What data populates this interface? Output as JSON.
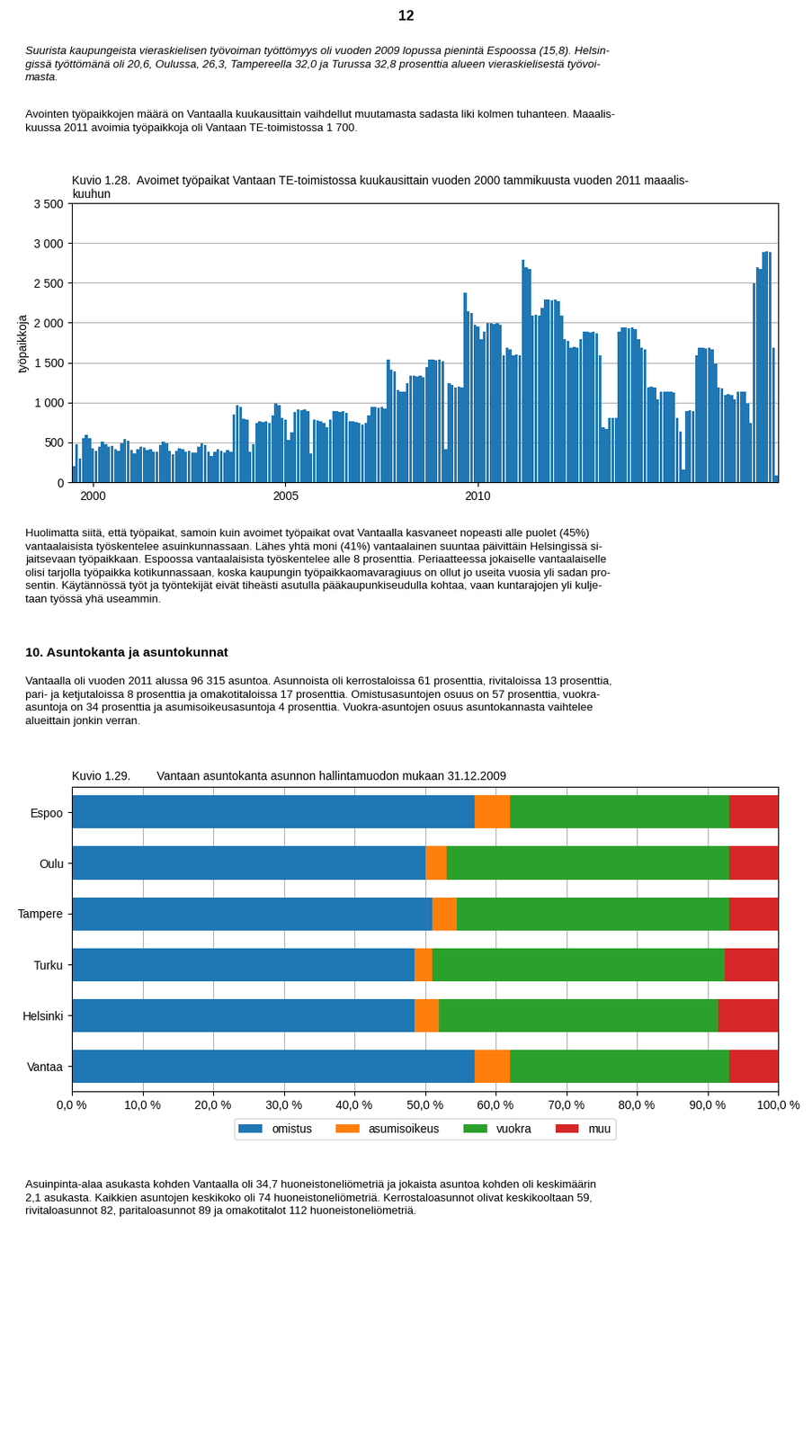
{
  "texts": [
    "12",
    "Suurista kaupungeista vieraskielisen työvoiman työttömyys oli vuoden 2009 lopussa pienintä Espoossa (15,8). Helsin-\ngissä työttömänä oli 20,6, Oulussa, 26,3, Tampereella 32,0 ja Turussa 32,8 prosenttia alueen vieraskielisestä työvoi-\nmasta.",
    "Avointen työpaikkojen määrä on Vantaalla kuukausittain vaihdellut muutamasta sadasta liki kolmen tuhanteen. Maaalis-\nkuussa 2011 avoimia työpaikkoja oli Vantaan TE-toimistossa 1 700.",
    "Huolimatta siitä, että työpaikat, samoin kuin avoimet työpaikat ovat Vantaalla kasvaneet nopeasti alle puolet (45%)\nvantaalaisista työskentelee asuinkunnassaan. Lähes yhtä moni (41%) vantaalainen suuntaa päivittäin Helsingissä si-\njaitsevaan työpaikkaan. Espoossa vantaalaisista työskentelee alle 8 prosenttia. Periaatteessa jokaiselle vantaalaiselle\nolisi tarjolla työpaikka kotikunnassaan, koska kaupungin työpaikkaomavaragiuus on ollut jo useita vuosia yli sadan pro-\nsentin. Käytännössä työt ja työntekijät eivät tiheästi asutulla pääkaupunkiseudulla kohtaa, vaan kuntarajojen yli kulje-\ntaan työssä yhä useammin.",
    "10. Asuntokanta ja asuntokunnat",
    "Vantaalla oli vuoden 2011 alussa 96 315 asuntoa. Asunnoista oli kerrostaloissa 61 prosenttia, rivitaloissa 13 prosenttia,\npari- ja ketjutaloissa 8 prosenttia ja omakotitaloissa 17 prosenttia. Omistusasuntojen osuus on 57 prosenttia, vuokra-\nasuntoja on 34 prosenttia ja asumisoikeusasuntoja 4 prosenttia. Vuokra-asuntojen osuus asuntokannasta vaihtelee\nalueittain jonkin verran.",
    "Asuinpinta-alaa asukasta kohden Vantaalla oli 34,7 huoneistoneliömetriä ja jokaista asuntoa kohden oli keskimäärin\n2,1 asukasta. Kaikkien asuntojen keskikoko oli 74 huoneistoneliömetriä. Kerrostaloasunnot olivat keskikooltaan 59,\nrivitaloasunnot 82, paritaloasunnot 89 ja omakotitalot 112 huoneistoneliömetriä."
  ],
  "chart_data": [
    {
      "type": "bar",
      "title": "Kuvio 1.28.  Avoimet työpaikat Vantaan TE-toimistossa kuukausittain vuoden 2000 tammikuusta vuoden 2011 maaalis-\nkuuhun",
      "ylabel": "työpaikkoja",
      "categories": [
        null,
        null,
        null,
        null,
        null,
        null,
        "2000",
        null,
        null,
        null,
        null,
        null,
        null,
        null,
        null,
        null,
        null,
        null,
        null,
        null,
        null,
        null,
        null,
        null,
        null,
        null,
        null,
        null,
        null,
        null,
        null,
        null,
        null,
        null,
        null,
        null,
        null,
        null,
        null,
        null,
        null,
        null,
        null,
        null,
        null,
        null,
        null,
        null,
        null,
        null,
        null,
        null,
        null,
        null,
        null,
        null,
        null,
        null,
        null,
        null,
        null,
        null,
        null,
        null,
        null,
        null,
        "2005",
        null,
        null,
        null,
        null,
        null,
        null,
        null,
        null,
        null,
        null,
        null,
        null,
        null,
        null,
        null,
        null,
        null,
        null,
        null,
        null,
        null,
        null,
        null,
        null,
        null,
        null,
        null,
        null,
        null,
        null,
        null,
        null,
        null,
        null,
        null,
        null,
        null,
        null,
        null,
        null,
        null,
        null,
        null,
        null,
        null,
        null,
        null,
        null,
        null,
        null,
        null,
        null,
        null,
        null,
        null,
        null,
        null,
        null,
        null,
        "2010",
        null,
        null,
        null,
        null,
        null,
        null,
        null,
        null,
        null,
        null,
        null,
        null,
        null,
        null,
        null,
        null,
        null,
        null,
        null,
        null,
        null,
        null,
        null,
        null,
        null,
        null,
        null,
        null,
        null,
        null,
        null,
        null,
        null,
        null,
        null,
        null,
        null,
        null,
        null,
        null,
        null,
        null,
        null,
        null,
        null,
        null,
        null,
        null,
        null,
        null,
        null,
        null,
        null,
        null,
        null,
        null,
        null,
        null,
        null,
        null,
        null,
        null,
        null,
        null,
        null,
        null,
        null,
        null,
        null,
        null,
        null,
        null,
        null,
        null,
        null,
        null,
        null,
        null,
        null,
        null,
        null,
        null,
        null,
        null,
        null,
        null,
        null,
        null,
        null,
        null,
        null,
        null,
        null
      ],
      "values": [
        200,
        480,
        300,
        550,
        590,
        550,
        420,
        390,
        450,
        510,
        480,
        450,
        460,
        410,
        390,
        490,
        540,
        520,
        400,
        360,
        410,
        450,
        430,
        400,
        410,
        380,
        380,
        470,
        510,
        490,
        390,
        350,
        390,
        420,
        410,
        380,
        390,
        370,
        370,
        450,
        490,
        470,
        380,
        330,
        380,
        410,
        390,
        370,
        400,
        380,
        850,
        960,
        940,
        800,
        780,
        380,
        480,
        740,
        760,
        750,
        760,
        740,
        840,
        990,
        960,
        810,
        790,
        530,
        630,
        880,
        910,
        900,
        910,
        890,
        360,
        790,
        770,
        760,
        740,
        690,
        790,
        890,
        890,
        880,
        890,
        870,
        760,
        760,
        750,
        740,
        720,
        740,
        840,
        940,
        940,
        930,
        940,
        920,
        1540,
        1410,
        1390,
        1160,
        1140,
        1140,
        1240,
        1340,
        1340,
        1330,
        1340,
        1320,
        1440,
        1540,
        1540,
        1530,
        1540,
        1520,
        410,
        1240,
        1220,
        1190,
        1200,
        1190,
        2380,
        2140,
        2120,
        1970,
        1950,
        1790,
        1890,
        1990,
        1990,
        1980,
        1990,
        1970,
        1590,
        1690,
        1670,
        1590,
        1600,
        1590,
        2790,
        2690,
        2670,
        2090,
        2100,
        2090,
        2190,
        2290,
        2290,
        2280,
        2290,
        2270,
        2090,
        1790,
        1770,
        1690,
        1700,
        1690,
        1790,
        1890,
        1890,
        1880,
        1890,
        1870,
        1590,
        690,
        670,
        810,
        810,
        810,
        1890,
        1940,
        1940,
        1930,
        1940,
        1920,
        1790,
        1690,
        1670,
        1190,
        1200,
        1190,
        1040,
        1140,
        1140,
        1130,
        1140,
        1120,
        810,
        640,
        160,
        890,
        900,
        890,
        1590,
        1690,
        1690,
        1680,
        1690,
        1670,
        1490,
        1190,
        1180,
        1090,
        1100,
        1090,
        1040,
        1140,
        1140,
        1130,
        990,
        740,
        2490,
        2690,
        2670,
        2890,
        2900,
        2890,
        1690,
        90
      ],
      "ylim": [
        0,
        3500
      ],
      "yticks": [
        0,
        500,
        {
          "value": 1000,
          "label": "1 000"
        },
        {
          "value": 1500,
          "label": "1 500"
        },
        {
          "value": 2000,
          "label": "2 000"
        },
        {
          "value": 2500,
          "label": "2 500"
        },
        {
          "value": 3000,
          "label": "3 000"
        },
        {
          "value": 3500,
          "label": "3 500"
        }
      ],
      "grid": true
    },
    {
      "type": "bar",
      "orientation": "horizontal",
      "stacked": true,
      "title": "Kuvio 1.29.        Vantaan asuntokanta asunnon hallintamuodon mukaan 31.12.2009",
      "categories": [
        "Espoo",
        "Oulu",
        "Tampere",
        "Turku",
        "Helsinki",
        "Vantaa"
      ],
      "series": [
        {
          "name": "omistus",
          "values": [
            57.0,
            50.0,
            51.0,
            48.5,
            48.5,
            57.0
          ]
        },
        {
          "name": "asumisoikeus",
          "values": [
            5.0,
            3.0,
            3.5,
            2.5,
            3.5,
            5.0
          ]
        },
        {
          "name": "vuokra",
          "values": [
            31.0,
            40.0,
            38.5,
            41.5,
            39.5,
            31.0
          ]
        },
        {
          "name": "muu",
          "values": [
            7.0,
            7.0,
            7.0,
            7.5,
            8.5,
            7.0
          ]
        }
      ],
      "xlim": [
        0,
        100
      ],
      "xticks": [
        {
          "value": 0,
          "label": "0,0 %"
        },
        {
          "value": 10,
          "label": "10,0 %"
        },
        {
          "value": 20,
          "label": "20,0 %"
        },
        {
          "value": 30,
          "label": "30,0 %"
        },
        {
          "value": 40,
          "label": "40,0 %"
        },
        {
          "value": 50,
          "label": "50,0 %"
        },
        {
          "value": 60,
          "label": "60,0 %"
        },
        {
          "value": 70,
          "label": "70,0 %"
        },
        {
          "value": 80,
          "label": "80,0 %"
        },
        {
          "value": 90,
          "label": "90,0 %"
        },
        {
          "value": 100,
          "label": "100,0 %"
        }
      ],
      "grid": true,
      "legend": "upper center"
    }
  ]
}
